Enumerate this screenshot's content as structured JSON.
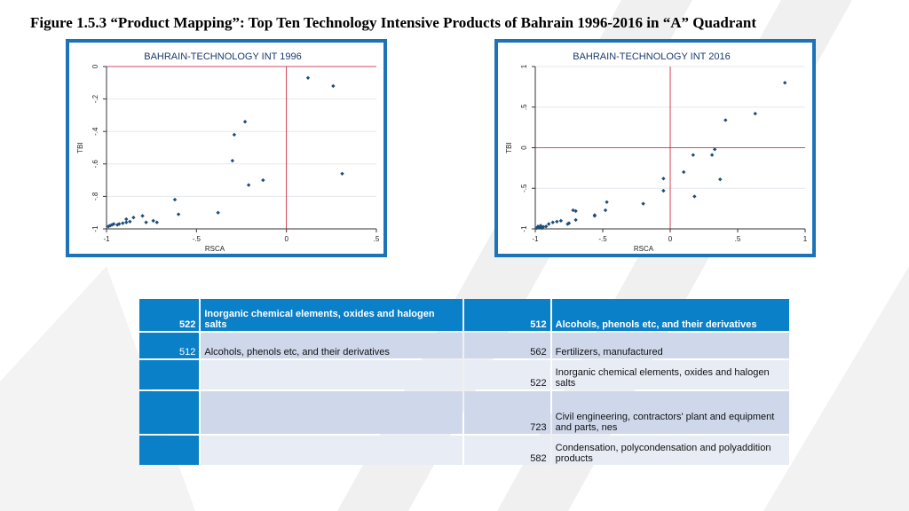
{
  "figure_title": "Figure 1.5.3 “Product Mapping”: Top Ten Technology Intensive Products of Bahrain 1996-2016 in “A” Quadrant",
  "chart_data": [
    {
      "type": "scatter",
      "title": "BAHRAIN-TECHNOLOGY INT 1996",
      "xlabel": "RSCA",
      "ylabel": "TBI",
      "xlim": [
        -1,
        0.5
      ],
      "ylim": [
        -1,
        0
      ],
      "xticks": [
        -1,
        -0.5,
        0,
        0.5
      ],
      "xtick_labels": [
        "-1",
        "-.5",
        "0",
        ".5"
      ],
      "yticks": [
        -1,
        -0.8,
        -0.6,
        -0.4,
        -0.2,
        0
      ],
      "ytick_labels": [
        "-1",
        "-.8",
        "-.6",
        "-.4",
        "-.2",
        "0"
      ],
      "vline": 0,
      "hline": 0,
      "grid": true,
      "point_color": "#1f4e79",
      "line_color": "#c8102e",
      "points": [
        [
          -0.99,
          -0.985
        ],
        [
          -0.98,
          -0.98
        ],
        [
          -0.97,
          -0.975
        ],
        [
          -0.96,
          -0.97
        ],
        [
          -0.94,
          -0.975
        ],
        [
          -0.93,
          -0.97
        ],
        [
          -0.91,
          -0.965
        ],
        [
          -0.89,
          -0.96
        ],
        [
          -0.87,
          -0.955
        ],
        [
          -0.85,
          -0.93
        ],
        [
          -0.89,
          -0.94
        ],
        [
          -0.8,
          -0.92
        ],
        [
          -0.78,
          -0.96
        ],
        [
          -0.74,
          -0.95
        ],
        [
          -0.72,
          -0.96
        ],
        [
          -0.62,
          -0.82
        ],
        [
          -0.6,
          -0.91
        ],
        [
          -0.38,
          -0.9
        ],
        [
          -0.3,
          -0.58
        ],
        [
          -0.29,
          -0.42
        ],
        [
          -0.23,
          -0.34
        ],
        [
          -0.21,
          -0.73
        ],
        [
          -0.13,
          -0.7
        ],
        [
          0.12,
          -0.07
        ],
        [
          0.26,
          -0.12
        ],
        [
          0.31,
          -0.66
        ]
      ]
    },
    {
      "type": "scatter",
      "title": "BAHRAIN-TECHNOLOGY INT 2016",
      "xlabel": "RSCA",
      "ylabel": "TBI",
      "xlim": [
        -1,
        1
      ],
      "ylim": [
        -1,
        1
      ],
      "xticks": [
        -1,
        -0.5,
        0,
        0.5,
        1
      ],
      "xtick_labels": [
        "-1",
        "-.5",
        "0",
        ".5",
        "1"
      ],
      "yticks": [
        -1,
        -0.5,
        0,
        0.5,
        1
      ],
      "ytick_labels": [
        "-1",
        "-.5",
        "0",
        ".5",
        "1"
      ],
      "vline": 0,
      "hline": 0,
      "grid": true,
      "point_color": "#1f4e79",
      "line_color": "#c8102e",
      "points": [
        [
          -0.99,
          -0.99
        ],
        [
          -0.98,
          -0.97
        ],
        [
          -0.97,
          -0.985
        ],
        [
          -0.96,
          -0.96
        ],
        [
          -0.95,
          -0.99
        ],
        [
          -0.94,
          -0.975
        ],
        [
          -0.92,
          -0.97
        ],
        [
          -0.9,
          -0.94
        ],
        [
          -0.87,
          -0.92
        ],
        [
          -0.84,
          -0.91
        ],
        [
          -0.81,
          -0.9
        ],
        [
          -0.76,
          -0.94
        ],
        [
          -0.75,
          -0.93
        ],
        [
          -0.72,
          -0.77
        ],
        [
          -0.7,
          -0.78
        ],
        [
          -0.7,
          -0.89
        ],
        [
          -0.56,
          -0.83
        ],
        [
          -0.56,
          -0.84
        ],
        [
          -0.48,
          -0.77
        ],
        [
          -0.47,
          -0.67
        ],
        [
          -0.2,
          -0.69
        ],
        [
          -0.05,
          -0.53
        ],
        [
          -0.05,
          -0.38
        ],
        [
          0.1,
          -0.3
        ],
        [
          0.17,
          -0.09
        ],
        [
          0.18,
          -0.6
        ],
        [
          0.31,
          -0.09
        ],
        [
          0.33,
          -0.02
        ],
        [
          0.37,
          -0.39
        ],
        [
          0.41,
          0.34
        ],
        [
          0.63,
          0.42
        ],
        [
          0.85,
          0.8
        ]
      ]
    }
  ],
  "table": {
    "header": {
      "code_a": "522",
      "name_a": "Inorganic chemical elements, oxides and halogen salts",
      "code_b": "512",
      "name_b": "Alcohols, phenols etc, and their derivatives"
    },
    "rows": [
      {
        "code_a": "512",
        "name_a": "Alcohols, phenols etc, and their derivatives",
        "code_b": "562",
        "name_b": "Fertilizers, manufactured"
      },
      {
        "code_a": "",
        "name_a": "",
        "code_b": "522",
        "name_b": "Inorganic chemical elements, oxides and halogen salts"
      },
      {
        "code_a": "",
        "name_a": "",
        "code_b": "723",
        "name_b": "Civil engineering, contractors' plant and equipment and parts, nes"
      },
      {
        "code_a": "",
        "name_a": "",
        "code_b": "582",
        "name_b": "Condensation, polycondensation and polyaddition products"
      }
    ]
  }
}
